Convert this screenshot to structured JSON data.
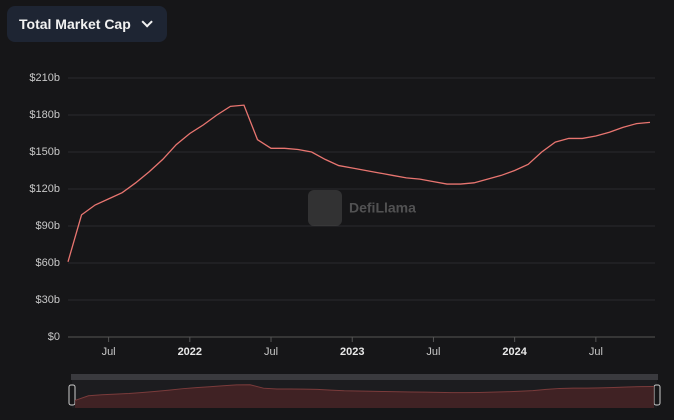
{
  "chart_data": {
    "type": "line",
    "title": "Total Market Cap",
    "watermark": "DefiLlama",
    "x": [
      "2021-04",
      "2021-05",
      "2021-06",
      "2021-07",
      "2021-08",
      "2021-09",
      "2021-10",
      "2021-11",
      "2021-12",
      "2022-01",
      "2022-02",
      "2022-03",
      "2022-04",
      "2022-05",
      "2022-06",
      "2022-07",
      "2022-08",
      "2022-09",
      "2022-10",
      "2022-11",
      "2022-12",
      "2023-01",
      "2023-02",
      "2023-03",
      "2023-04",
      "2023-05",
      "2023-06",
      "2023-07",
      "2023-08",
      "2023-09",
      "2023-10",
      "2023-11",
      "2023-12",
      "2024-01",
      "2024-02",
      "2024-03",
      "2024-04",
      "2024-05",
      "2024-06",
      "2024-07",
      "2024-08",
      "2024-09",
      "2024-10",
      "2024-11"
    ],
    "series": [
      {
        "name": "Total Market Cap",
        "color": "#e87570",
        "values": [
          61,
          99,
          107,
          112,
          117,
          125,
          134,
          144,
          156,
          165,
          172,
          180,
          187,
          188,
          160,
          153,
          153,
          152,
          150,
          144,
          139,
          137,
          135,
          133,
          131,
          129,
          128,
          126,
          124,
          124,
          125,
          128,
          131,
          135,
          140,
          150,
          158,
          161,
          161,
          163,
          166,
          170,
          173,
          174
        ]
      }
    ],
    "xlim": [
      "2021-04",
      "2024-11"
    ],
    "xticks": [
      {
        "value": "2021-07",
        "label": "Jul"
      },
      {
        "value": "2022-01",
        "label": "2022"
      },
      {
        "value": "2022-07",
        "label": "Jul"
      },
      {
        "value": "2023-01",
        "label": "2023"
      },
      {
        "value": "2023-07",
        "label": "Jul"
      },
      {
        "value": "2024-01",
        "label": "2024"
      },
      {
        "value": "2024-07",
        "label": "Jul"
      }
    ],
    "ylim": [
      0,
      210
    ],
    "yticks": [
      {
        "value": 0,
        "label": "$0"
      },
      {
        "value": 30,
        "label": "$30b"
      },
      {
        "value": 60,
        "label": "$60b"
      },
      {
        "value": 90,
        "label": "$90b"
      },
      {
        "value": 120,
        "label": "$120b"
      },
      {
        "value": 150,
        "label": "$150b"
      },
      {
        "value": 180,
        "label": "$180b"
      },
      {
        "value": 210,
        "label": "$210b"
      }
    ],
    "grid": true
  }
}
